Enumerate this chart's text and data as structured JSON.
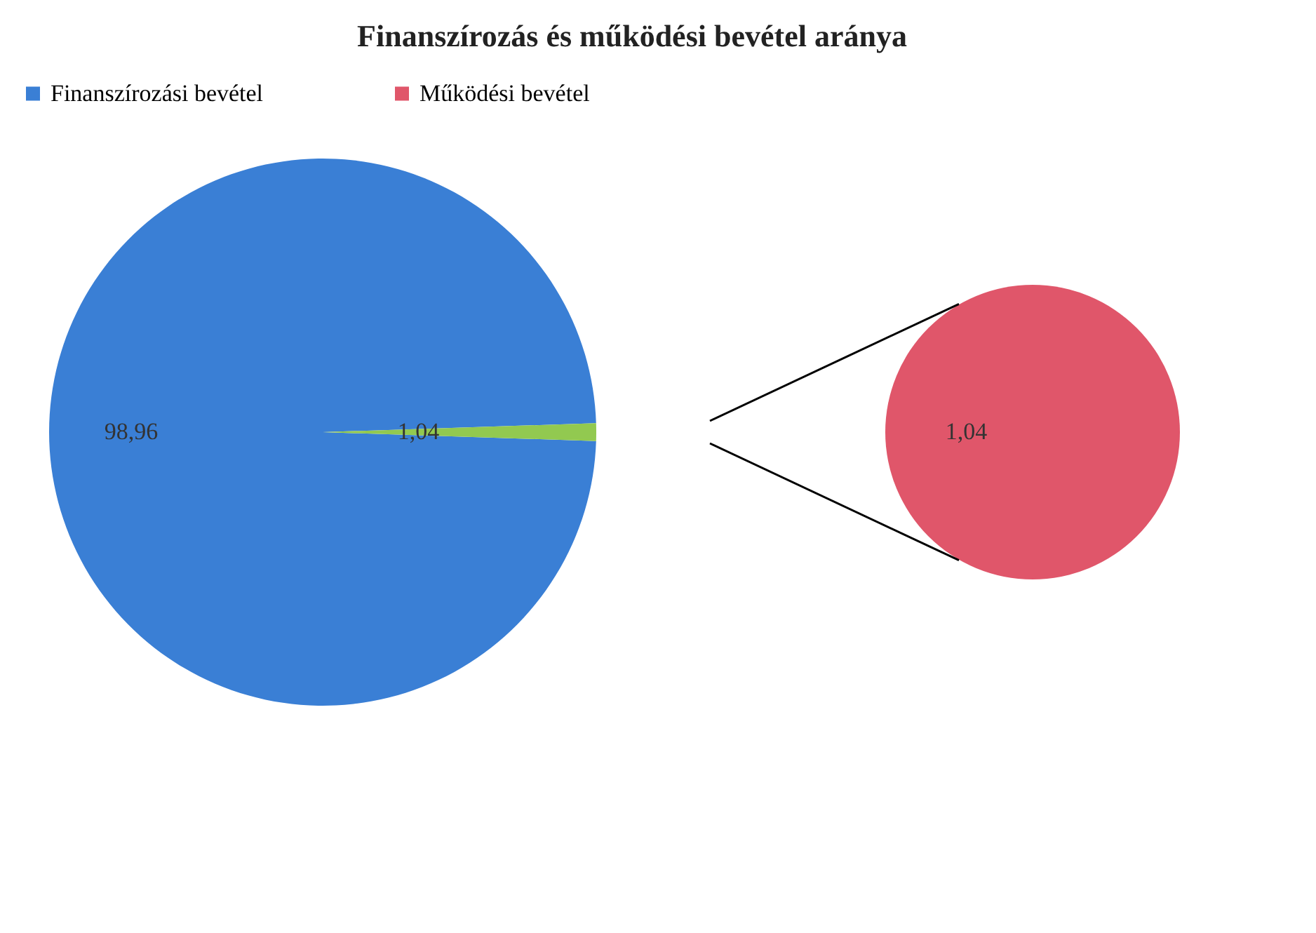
{
  "chart_data": [
    {
      "type": "pie",
      "title": "Finanszírozás és működési bevétel aránya",
      "categories": [
        "Finanszírozási bevétel",
        null
      ],
      "values": [
        98.96,
        1.04
      ],
      "colors": [
        "#3a7fd5",
        "#92c950"
      ],
      "value_labels": [
        "98,96",
        "1,04"
      ],
      "legend": "top"
    },
    {
      "type": "pie",
      "categories": [
        "Működési bevétel"
      ],
      "values": [
        1.04
      ],
      "colors": [
        "#e0566a"
      ],
      "value_labels": [
        "1,04"
      ]
    }
  ]
}
